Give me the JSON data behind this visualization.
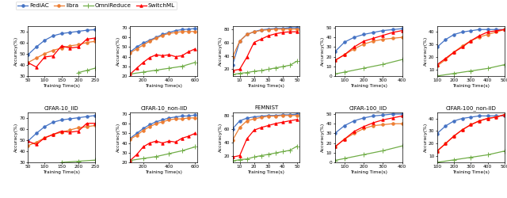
{
  "legend": [
    "FediAC",
    "libra",
    "OmniReduce",
    "SwitchML"
  ],
  "colors": [
    "#4472C4",
    "#ED7D31",
    "#70AD47",
    "#FF0000"
  ],
  "col_labels": [
    "CIFAR-10_IID",
    "CIFAR-10_non-IID",
    "FEMNIST",
    "CIFAR-100_IID",
    "CIFAR-100_non-IID"
  ],
  "subplots": [
    {
      "row": 0,
      "col": 0,
      "xlim": [
        50,
        250
      ],
      "ylim": [
        30,
        75
      ],
      "xticks": [
        50,
        100,
        150,
        200,
        250
      ],
      "yticks": [
        30,
        40,
        50,
        60,
        70
      ],
      "series": [
        {
          "x": [
            50,
            75,
            100,
            125,
            150,
            175,
            200,
            225,
            250
          ],
          "y": [
            49,
            56,
            62,
            66,
            68,
            69,
            70,
            71,
            71.5
          ]
        },
        {
          "x": [
            50,
            75,
            100,
            125,
            150,
            175,
            200,
            225,
            250
          ],
          "y": [
            42,
            46,
            50,
            53,
            55,
            57,
            58,
            60,
            61
          ]
        },
        {
          "x": [
            200,
            225,
            250
          ],
          "y": [
            33,
            35,
            37
          ]
        },
        {
          "x": [
            50,
            75,
            100,
            125,
            150,
            175,
            200,
            225,
            250
          ],
          "y": [
            42,
            38,
            47,
            48,
            57,
            55,
            56,
            63,
            64
          ]
        }
      ]
    },
    {
      "row": 0,
      "col": 1,
      "xlim": [
        100,
        620
      ],
      "ylim": [
        20,
        72
      ],
      "xticks": [
        200,
        400,
        600
      ],
      "yticks": [
        20,
        30,
        40,
        50,
        60,
        70
      ],
      "series": [
        {
          "x": [
            100,
            150,
            200,
            250,
            300,
            350,
            400,
            450,
            500,
            550,
            600
          ],
          "y": [
            45,
            50,
            54,
            57,
            60,
            63,
            65,
            67,
            68,
            68.5,
            69
          ]
        },
        {
          "x": [
            100,
            150,
            200,
            250,
            300,
            350,
            400,
            450,
            500,
            550,
            600
          ],
          "y": [
            44,
            48,
            52,
            56,
            59,
            62,
            64,
            65,
            66,
            66,
            66
          ]
        },
        {
          "x": [
            100,
            200,
            300,
            400,
            500,
            600
          ],
          "y": [
            22,
            24,
            26,
            28,
            30,
            34
          ]
        },
        {
          "x": [
            100,
            150,
            200,
            250,
            300,
            350,
            400,
            450,
            500,
            550,
            600
          ],
          "y": [
            22,
            28,
            34,
            39,
            42,
            41,
            42,
            40,
            41,
            45,
            48
          ]
        }
      ]
    },
    {
      "row": 0,
      "col": 2,
      "xlim": [
        5,
        52
      ],
      "ylim": [
        10,
        85
      ],
      "xticks": [
        10,
        20,
        30,
        40,
        50
      ],
      "yticks": [
        20,
        40,
        60,
        80
      ],
      "series": [
        {
          "x": [
            5,
            10,
            15,
            20,
            25,
            30,
            35,
            40,
            45,
            50
          ],
          "y": [
            26,
            62,
            72,
            76,
            79,
            80,
            81,
            81,
            82,
            82
          ]
        },
        {
          "x": [
            5,
            10,
            15,
            20,
            25,
            30,
            35,
            40,
            45,
            50
          ],
          "y": [
            38,
            62,
            72,
            76,
            78,
            79,
            80,
            80,
            80,
            80
          ]
        },
        {
          "x": [
            5,
            10,
            15,
            20,
            25,
            30,
            35,
            40,
            45,
            50
          ],
          "y": [
            12,
            14,
            15,
            17,
            18,
            20,
            22,
            24,
            26,
            32
          ]
        },
        {
          "x": [
            5,
            10,
            15,
            20,
            25,
            30,
            35,
            40,
            45,
            50
          ],
          "y": [
            18,
            20,
            38,
            60,
            65,
            70,
            73,
            75,
            76,
            76
          ]
        }
      ]
    },
    {
      "row": 0,
      "col": 3,
      "xlim": [
        50,
        400
      ],
      "ylim": [
        0,
        52
      ],
      "xticks": [
        100,
        200,
        300,
        400
      ],
      "yticks": [
        0,
        10,
        20,
        30,
        40,
        50
      ],
      "series": [
        {
          "x": [
            50,
            100,
            150,
            200,
            250,
            300,
            350,
            400
          ],
          "y": [
            25,
            35,
            40,
            43,
            45,
            47,
            48,
            49
          ]
        },
        {
          "x": [
            50,
            100,
            150,
            200,
            250,
            300,
            350,
            400
          ],
          "y": [
            16,
            22,
            28,
            33,
            36,
            38,
            39,
            40
          ]
        },
        {
          "x": [
            50,
            100,
            200,
            300,
            400
          ],
          "y": [
            2,
            4,
            8,
            12,
            17
          ]
        },
        {
          "x": [
            50,
            100,
            150,
            200,
            250,
            300,
            350,
            400
          ],
          "y": [
            16,
            22,
            30,
            36,
            39,
            42,
            45,
            47
          ]
        }
      ]
    },
    {
      "row": 0,
      "col": 4,
      "xlim": [
        100,
        500
      ],
      "ylim": [
        5,
        45
      ],
      "xticks": [
        100,
        200,
        300,
        400,
        500
      ],
      "yticks": [
        10,
        20,
        30,
        40
      ],
      "series": [
        {
          "x": [
            100,
            150,
            200,
            250,
            300,
            350,
            400,
            450,
            500
          ],
          "y": [
            28,
            34,
            38,
            40,
            41,
            42,
            42,
            42,
            42
          ]
        },
        {
          "x": [
            100,
            150,
            200,
            250,
            300,
            350,
            400,
            450,
            500
          ],
          "y": [
            13,
            18,
            24,
            29,
            33,
            36,
            38,
            40,
            42
          ]
        },
        {
          "x": [
            100,
            200,
            300,
            400,
            500
          ],
          "y": [
            5,
            7,
            9,
            11,
            14
          ]
        },
        {
          "x": [
            100,
            150,
            200,
            250,
            300,
            350,
            400,
            450,
            500
          ],
          "y": [
            14,
            19,
            24,
            28,
            33,
            37,
            40,
            41,
            42
          ]
        }
      ]
    },
    {
      "row": 1,
      "col": 0,
      "xlim": [
        50,
        250
      ],
      "ylim": [
        30,
        75
      ],
      "xticks": [
        50,
        100,
        150,
        200,
        250
      ],
      "yticks": [
        30,
        40,
        50,
        60,
        70
      ],
      "series": [
        {
          "x": [
            50,
            75,
            100,
            125,
            150,
            175,
            200,
            225,
            250
          ],
          "y": [
            49,
            56,
            62,
            66,
            68,
            69,
            70,
            71,
            72
          ]
        },
        {
          "x": [
            50,
            75,
            100,
            125,
            150,
            175,
            200,
            225,
            250
          ],
          "y": [
            45,
            48,
            52,
            55,
            57,
            59,
            61,
            62,
            63
          ]
        },
        {
          "x": [
            150,
            200,
            250
          ],
          "y": [
            30,
            31,
            32
          ]
        },
        {
          "x": [
            50,
            75,
            100,
            125,
            150,
            175,
            200,
            225,
            250
          ],
          "y": [
            49,
            46,
            52,
            55,
            58,
            57,
            58,
            65,
            65
          ]
        }
      ]
    },
    {
      "row": 1,
      "col": 1,
      "xlim": [
        100,
        620
      ],
      "ylim": [
        20,
        72
      ],
      "xticks": [
        200,
        400,
        600
      ],
      "yticks": [
        20,
        30,
        40,
        50,
        60,
        70
      ],
      "series": [
        {
          "x": [
            100,
            150,
            200,
            250,
            300,
            350,
            400,
            450,
            500,
            550,
            600
          ],
          "y": [
            45,
            50,
            55,
            59,
            62,
            64,
            66,
            67,
            68,
            68,
            69
          ]
        },
        {
          "x": [
            100,
            150,
            200,
            250,
            300,
            350,
            400,
            450,
            500,
            550,
            600
          ],
          "y": [
            44,
            48,
            53,
            57,
            60,
            62,
            64,
            65,
            65,
            66,
            66
          ]
        },
        {
          "x": [
            100,
            200,
            300,
            400,
            500,
            600
          ],
          "y": [
            22,
            24,
            26,
            29,
            32,
            36
          ]
        },
        {
          "x": [
            100,
            150,
            200,
            250,
            300,
            350,
            400,
            450,
            500,
            550,
            600
          ],
          "y": [
            22,
            28,
            36,
            40,
            42,
            40,
            42,
            41,
            45,
            47,
            50
          ]
        }
      ]
    },
    {
      "row": 1,
      "col": 2,
      "xlim": [
        5,
        52
      ],
      "ylim": [
        10,
        85
      ],
      "xticks": [
        10,
        20,
        30,
        40,
        50
      ],
      "yticks": [
        20,
        40,
        60,
        80
      ],
      "series": [
        {
          "x": [
            5,
            10,
            15,
            20,
            25,
            30,
            35,
            40,
            45,
            50
          ],
          "y": [
            60,
            72,
            76,
            78,
            79,
            80,
            80,
            81,
            81,
            82
          ]
        },
        {
          "x": [
            5,
            10,
            15,
            20,
            25,
            30,
            35,
            40,
            45,
            50
          ],
          "y": [
            43,
            62,
            72,
            75,
            77,
            79,
            79,
            80,
            80,
            80
          ]
        },
        {
          "x": [
            5,
            10,
            15,
            20,
            25,
            30,
            35,
            40,
            45,
            50
          ],
          "y": [
            12,
            14,
            15,
            18,
            20,
            22,
            24,
            26,
            28,
            34
          ]
        },
        {
          "x": [
            5,
            10,
            15,
            20,
            25,
            30,
            35,
            40,
            45,
            50
          ],
          "y": [
            18,
            20,
            45,
            58,
            62,
            65,
            68,
            70,
            72,
            74
          ]
        }
      ]
    },
    {
      "row": 1,
      "col": 3,
      "xlim": [
        50,
        400
      ],
      "ylim": [
        0,
        52
      ],
      "xticks": [
        100,
        200,
        300,
        400
      ],
      "yticks": [
        0,
        10,
        20,
        30,
        40,
        50
      ],
      "series": [
        {
          "x": [
            50,
            100,
            150,
            200,
            250,
            300,
            350,
            400
          ],
          "y": [
            30,
            38,
            43,
            46,
            48,
            49,
            50,
            50
          ]
        },
        {
          "x": [
            50,
            100,
            150,
            200,
            250,
            300,
            350,
            400
          ],
          "y": [
            16,
            24,
            30,
            35,
            38,
            39,
            40,
            40
          ]
        },
        {
          "x": [
            50,
            100,
            200,
            300,
            400
          ],
          "y": [
            2,
            4,
            8,
            12,
            17
          ]
        },
        {
          "x": [
            50,
            100,
            150,
            200,
            250,
            300,
            350,
            400
          ],
          "y": [
            16,
            24,
            32,
            37,
            41,
            44,
            46,
            48
          ]
        }
      ]
    },
    {
      "row": 1,
      "col": 4,
      "xlim": [
        100,
        500
      ],
      "ylim": [
        5,
        45
      ],
      "xticks": [
        100,
        200,
        300,
        400,
        500
      ],
      "yticks": [
        10,
        20,
        30,
        40
      ],
      "series": [
        {
          "x": [
            100,
            150,
            200,
            250,
            300,
            350,
            400,
            450,
            500
          ],
          "y": [
            28,
            34,
            38,
            40,
            41,
            42,
            42,
            42,
            42
          ]
        },
        {
          "x": [
            100,
            150,
            200,
            250,
            300,
            350,
            400,
            450,
            500
          ],
          "y": [
            14,
            20,
            26,
            31,
            35,
            38,
            40,
            41,
            43
          ]
        },
        {
          "x": [
            100,
            200,
            300,
            400,
            500
          ],
          "y": [
            5,
            7,
            9,
            11,
            14
          ]
        },
        {
          "x": [
            100,
            150,
            200,
            250,
            300,
            350,
            400,
            450,
            500
          ],
          "y": [
            14,
            20,
            26,
            31,
            35,
            38,
            40,
            41,
            43
          ]
        }
      ]
    }
  ]
}
